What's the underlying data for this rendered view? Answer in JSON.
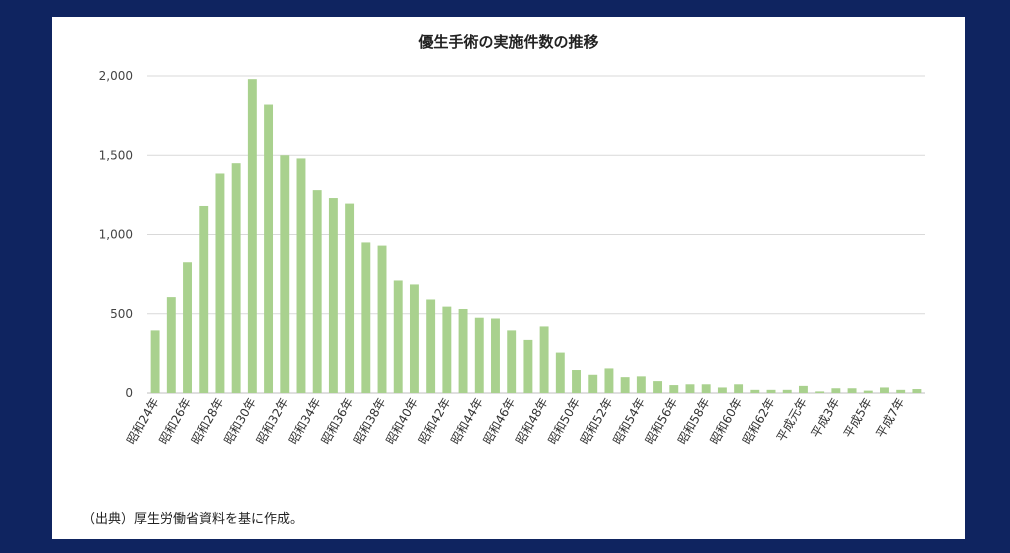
{
  "chart_data": {
    "type": "bar",
    "title": "優生手術の実施件数の推移",
    "xlabel": "",
    "ylabel": "",
    "ylim": [
      0,
      2000
    ],
    "yticks": [
      "0",
      "500",
      "1,000",
      "1,500",
      "2,000"
    ],
    "ytick_values": [
      0,
      500,
      1000,
      1500,
      2000
    ],
    "grid": true,
    "bar_color": "#a9d18e",
    "categories": [
      "昭和24年",
      "昭和25年",
      "昭和26年",
      "昭和27年",
      "昭和28年",
      "昭和29年",
      "昭和30年",
      "昭和31年",
      "昭和32年",
      "昭和33年",
      "昭和34年",
      "昭和35年",
      "昭和36年",
      "昭和37年",
      "昭和38年",
      "昭和39年",
      "昭和40年",
      "昭和41年",
      "昭和42年",
      "昭和43年",
      "昭和44年",
      "昭和45年",
      "昭和46年",
      "昭和47年",
      "昭和48年",
      "昭和49年",
      "昭和50年",
      "昭和51年",
      "昭和52年",
      "昭和53年",
      "昭和54年",
      "昭和55年",
      "昭和56年",
      "昭和57年",
      "昭和58年",
      "昭和59年",
      "昭和60年",
      "昭和61年",
      "昭和62年",
      "昭和63年",
      "平成元年",
      "平成2年",
      "平成3年",
      "平成4年",
      "平成5年",
      "平成6年",
      "平成7年",
      "平成8年"
    ],
    "tick_labels": [
      "昭和24年",
      "昭和26年",
      "昭和28年",
      "昭和30年",
      "昭和32年",
      "昭和34年",
      "昭和36年",
      "昭和38年",
      "昭和40年",
      "昭和42年",
      "昭和44年",
      "昭和46年",
      "昭和48年",
      "昭和50年",
      "昭和52年",
      "昭和54年",
      "昭和56年",
      "昭和58年",
      "昭和60年",
      "昭和62年",
      "平成元年",
      "平成3年",
      "平成5年",
      "平成7年"
    ],
    "values": [
      395,
      605,
      825,
      1180,
      1385,
      1450,
      1980,
      1820,
      1500,
      1480,
      1280,
      1230,
      1195,
      950,
      930,
      710,
      685,
      590,
      545,
      530,
      475,
      470,
      395,
      335,
      420,
      255,
      145,
      115,
      155,
      100,
      105,
      75,
      50,
      55,
      55,
      35,
      55,
      20,
      20,
      20,
      45,
      10,
      30,
      30,
      15,
      35,
      20,
      25
    ]
  },
  "source_note": "（出典）厚生労働省資料を基に作成。"
}
